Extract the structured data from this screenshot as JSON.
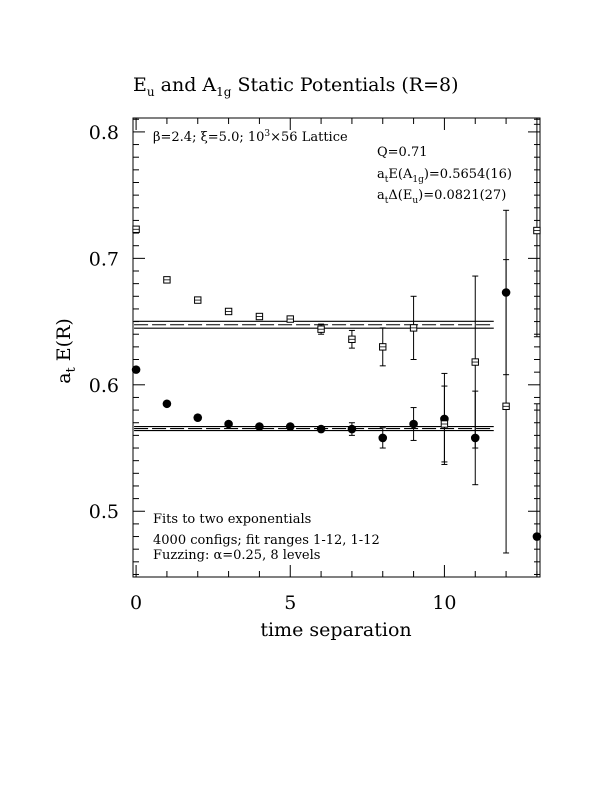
{
  "chart_data": {
    "type": "scatter",
    "title": {
      "main": "E",
      "sub1": "u",
      "mid": " and A",
      "sub2": "1g",
      "tail": " Static Potentials (R=8)"
    },
    "xlabel": "time separation",
    "ylabel": {
      "main": "a",
      "sub": "t",
      "tail": " E(R)"
    },
    "xlim": [
      -0.1,
      13.1
    ],
    "ylim": [
      0.448,
      0.811
    ],
    "x_ticks": [
      0,
      5,
      10
    ],
    "x_tick_labels": [
      "0",
      "5",
      "10"
    ],
    "y_ticks": [
      0.5,
      0.6,
      0.7,
      0.8
    ],
    "y_tick_labels": [
      "0.5",
      "0.6",
      "0.7",
      "0.8"
    ],
    "annotations": {
      "lattice": {
        "beta": "β=2.4; ",
        "xi": "ξ=5.0; ",
        "lat": "10",
        "lat_sup": "3",
        "lat_tail": "×56 Lattice"
      },
      "q": "Q=0.71",
      "e_a1g": {
        "a": "a",
        "t": "t",
        "mid": "E(A",
        "sub": "1g",
        "tail": ")=0.5654(16)"
      },
      "de_eu": {
        "a": "a",
        "t": "t",
        "mid": "Δ(E",
        "sub": "u",
        "tail": ")=0.0821(27)"
      },
      "fits": "Fits to two exponentials",
      "configs": "4000 configs; fit ranges 1-12, 1-12",
      "fuzz": "Fuzzing: α=0.25, 8 levels"
    },
    "fit_lines": [
      {
        "name": "A1g",
        "center": 0.5654,
        "err": 0.0016,
        "x_range": [
          0,
          11.6
        ]
      },
      {
        "name": "Eu",
        "center": 0.6475,
        "err": 0.0027,
        "x_range": [
          0,
          11.6
        ]
      }
    ],
    "series": [
      {
        "name": "A1g",
        "marker": "filled-circle",
        "points": [
          {
            "x": 0,
            "y": 0.612,
            "err": 0.001
          },
          {
            "x": 1,
            "y": 0.585,
            "err": 0.001
          },
          {
            "x": 2,
            "y": 0.574,
            "err": 0.001
          },
          {
            "x": 3,
            "y": 0.569,
            "err": 0.001
          },
          {
            "x": 4,
            "y": 0.567,
            "err": 0.001
          },
          {
            "x": 5,
            "y": 0.567,
            "err": 0.002
          },
          {
            "x": 6,
            "y": 0.565,
            "err": 0.002
          },
          {
            "x": 7,
            "y": 0.565,
            "err": 0.005
          },
          {
            "x": 8,
            "y": 0.558,
            "err": 0.008
          },
          {
            "x": 9,
            "y": 0.569,
            "err": 0.013
          },
          {
            "x": 10,
            "y": 0.573,
            "err": 0.036
          },
          {
            "x": 11,
            "y": 0.558,
            "err": 0.037
          },
          {
            "x": 12,
            "y": 0.673,
            "err": 0.065
          },
          {
            "x": 13,
            "y": 0.48,
            "err": 0.105
          }
        ]
      },
      {
        "name": "Eu",
        "marker": "open-square",
        "points": [
          {
            "x": 0,
            "y": 0.723,
            "err": 0.002
          },
          {
            "x": 1,
            "y": 0.683,
            "err": 0.002
          },
          {
            "x": 2,
            "y": 0.667,
            "err": 0.002
          },
          {
            "x": 3,
            "y": 0.658,
            "err": 0.002
          },
          {
            "x": 4,
            "y": 0.654,
            "err": 0.002
          },
          {
            "x": 5,
            "y": 0.652,
            "err": 0.002
          },
          {
            "x": 6,
            "y": 0.644,
            "err": 0.004
          },
          {
            "x": 7,
            "y": 0.636,
            "err": 0.007
          },
          {
            "x": 8,
            "y": 0.63,
            "err": 0.015
          },
          {
            "x": 9,
            "y": 0.645,
            "err": 0.025
          },
          {
            "x": 10,
            "y": 0.569,
            "err": 0.03
          },
          {
            "x": 11,
            "y": 0.618,
            "err": 0.068
          },
          {
            "x": 12,
            "y": 0.583,
            "err": 0.116
          },
          {
            "x": 13,
            "y": 0.722,
            "err": 0.084
          }
        ]
      }
    ]
  }
}
